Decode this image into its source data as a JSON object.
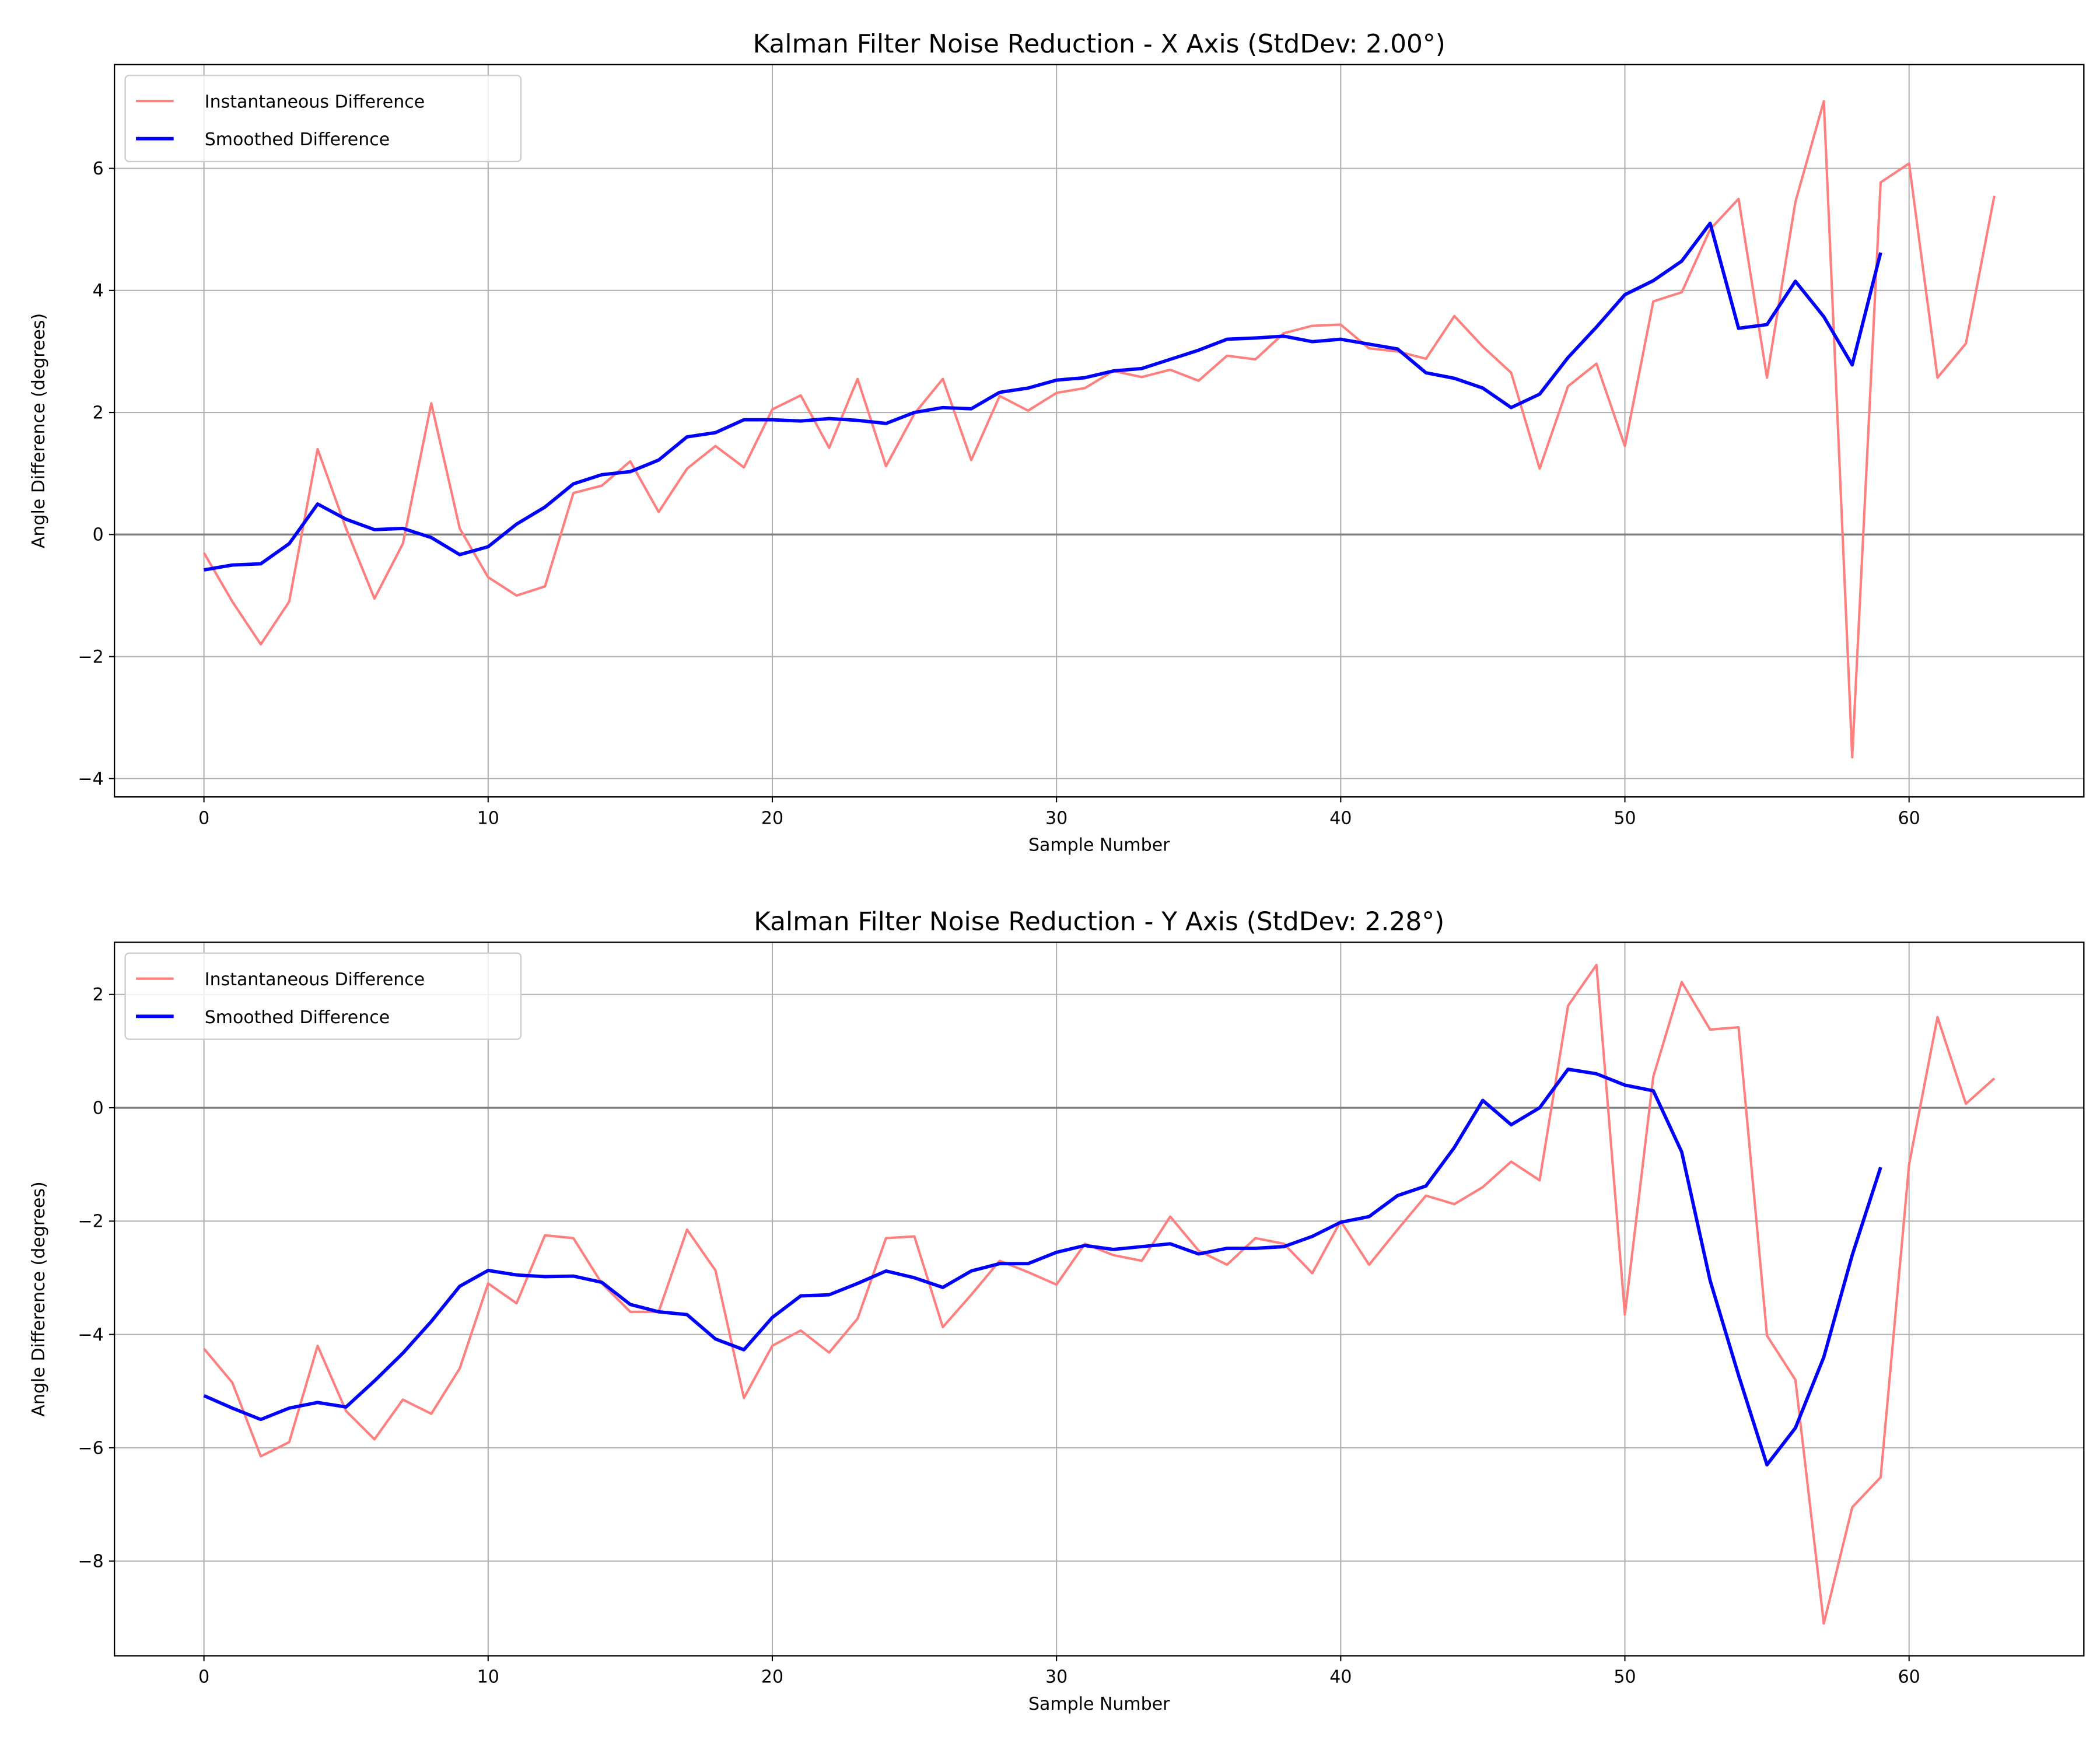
{
  "chart_data": [
    {
      "type": "line",
      "title": "Kalman Filter Noise Reduction - X Axis (StdDev: 2.00°)",
      "xlabel": "Sample Number",
      "ylabel": "Angle Difference (degrees)",
      "xlim": [
        -3.15,
        66.15
      ],
      "ylim": [
        -4.3,
        7.7
      ],
      "xticks": [
        0,
        10,
        20,
        30,
        40,
        50,
        60
      ],
      "yticks": [
        -4,
        -2,
        0,
        2,
        4,
        6
      ],
      "grid": true,
      "zero_line": true,
      "legend": "upper-left",
      "series": [
        {
          "name": "Instantaneous Difference",
          "color": "#ff7f7f",
          "values": [
            -0.3,
            -1.1,
            -1.8,
            -1.1,
            1.4,
            0.1,
            -1.05,
            -0.15,
            2.15,
            0.1,
            -0.7,
            -1.0,
            -0.85,
            0.68,
            0.8,
            1.2,
            0.37,
            1.08,
            1.45,
            1.1,
            2.05,
            2.28,
            1.42,
            2.55,
            1.12,
            1.98,
            2.55,
            1.22,
            2.27,
            2.03,
            2.32,
            2.4,
            2.68,
            2.58,
            2.7,
            2.52,
            2.93,
            2.87,
            3.3,
            3.42,
            3.44,
            3.05,
            3.0,
            2.88,
            3.58,
            3.08,
            2.65,
            1.08,
            2.43,
            2.8,
            1.45,
            3.82,
            3.97,
            5.0,
            5.5,
            2.57,
            5.45,
            7.1,
            -3.65,
            5.77,
            6.08,
            2.57,
            3.13,
            5.55
          ]
        },
        {
          "name": "Smoothed Difference",
          "color": "#0000ff",
          "values": [
            -0.58,
            -0.5,
            -0.48,
            -0.15,
            0.5,
            0.25,
            0.08,
            0.1,
            -0.05,
            -0.33,
            -0.2,
            0.17,
            0.45,
            0.83,
            0.98,
            1.03,
            1.22,
            1.6,
            1.67,
            1.88,
            1.88,
            1.86,
            1.9,
            1.87,
            1.82,
            2.0,
            2.08,
            2.06,
            2.33,
            2.4,
            2.53,
            2.57,
            2.68,
            2.72,
            2.87,
            3.02,
            3.2,
            3.22,
            3.25,
            3.16,
            3.2,
            3.12,
            3.04,
            2.65,
            2.56,
            2.4,
            2.08,
            2.3,
            2.9,
            3.4,
            3.93,
            4.16,
            4.48,
            5.1,
            3.38,
            3.44,
            4.15,
            3.57,
            2.78,
            4.62
          ]
        }
      ]
    },
    {
      "type": "line",
      "title": "Kalman Filter Noise Reduction - Y Axis (StdDev: 2.28°)",
      "xlabel": "Sample Number",
      "ylabel": "Angle Difference (degrees)",
      "xlim": [
        -3.15,
        66.15
      ],
      "ylim": [
        -9.67,
        2.92
      ],
      "xticks": [
        0,
        10,
        20,
        30,
        40,
        50,
        60
      ],
      "yticks": [
        -8,
        -6,
        -4,
        -2,
        0,
        2
      ],
      "grid": true,
      "zero_line": true,
      "legend": "upper-left",
      "series": [
        {
          "name": "Instantaneous Difference",
          "color": "#ff7f7f",
          "values": [
            -4.25,
            -4.85,
            -6.15,
            -5.9,
            -4.2,
            -5.35,
            -5.85,
            -5.15,
            -5.4,
            -4.6,
            -3.1,
            -3.45,
            -2.25,
            -2.3,
            -3.1,
            -3.6,
            -3.6,
            -2.15,
            -2.87,
            -5.12,
            -4.2,
            -3.93,
            -4.32,
            -3.72,
            -2.3,
            -2.27,
            -3.87,
            -3.3,
            -2.7,
            -2.9,
            -3.12,
            -2.4,
            -2.6,
            -2.7,
            -1.92,
            -2.52,
            -2.77,
            -2.3,
            -2.4,
            -2.92,
            -2.0,
            -2.77,
            -2.15,
            -1.55,
            -1.7,
            -1.4,
            -0.95,
            -1.28,
            1.8,
            2.52,
            -3.65,
            0.55,
            2.22,
            1.38,
            1.42,
            -4.02,
            -4.8,
            -9.1,
            -7.05,
            -6.52,
            -1.0,
            1.6,
            0.07,
            0.52
          ]
        },
        {
          "name": "Smoothed Difference",
          "color": "#0000ff",
          "values": [
            -5.08,
            -5.3,
            -5.5,
            -5.3,
            -5.2,
            -5.28,
            -4.82,
            -4.33,
            -3.77,
            -3.15,
            -2.87,
            -2.95,
            -2.98,
            -2.97,
            -3.08,
            -3.47,
            -3.6,
            -3.65,
            -4.08,
            -4.27,
            -3.7,
            -3.32,
            -3.3,
            -3.1,
            -2.88,
            -3.0,
            -3.17,
            -2.88,
            -2.75,
            -2.75,
            -2.55,
            -2.43,
            -2.5,
            -2.45,
            -2.4,
            -2.58,
            -2.48,
            -2.48,
            -2.45,
            -2.27,
            -2.02,
            -1.92,
            -1.55,
            -1.38,
            -0.7,
            0.13,
            -0.3,
            0.0,
            0.68,
            0.6,
            0.4,
            0.3,
            -0.78,
            -3.05,
            -4.72,
            -6.3,
            -5.65,
            -4.4,
            -2.6,
            -1.05
          ]
        }
      ]
    }
  ]
}
